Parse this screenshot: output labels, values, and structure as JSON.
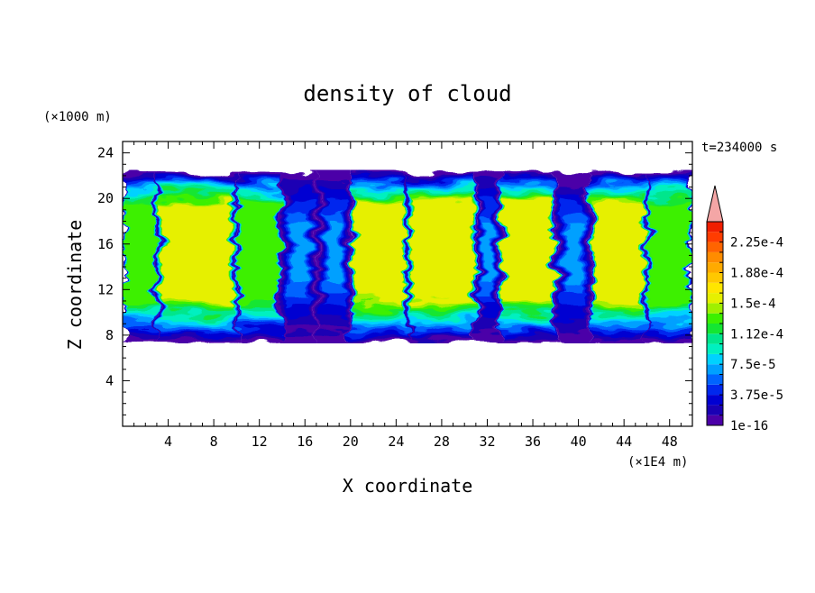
{
  "chart_data": {
    "type": "heatmap",
    "title": "density of cloud",
    "xlabel": "X coordinate",
    "ylabel": "Z coordinate",
    "x_unit": "(×1E4 m)",
    "y_unit": "(×1000 m)",
    "time_label": "t=234000 s",
    "xlim": [
      0,
      50
    ],
    "ylim": [
      0,
      25
    ],
    "x_ticks": [
      "4",
      "8",
      "12",
      "16",
      "20",
      "24",
      "28",
      "32",
      "36",
      "40",
      "44",
      "48"
    ],
    "y_ticks": [
      "4",
      "8",
      "12",
      "16",
      "20",
      "24"
    ],
    "colorbar": {
      "labels": [
        "1e-16",
        "3.75e-5",
        "7.5e-5",
        "1.12e-4",
        "1.5e-4",
        "1.88e-4",
        "2.25e-4"
      ],
      "colors": [
        "#4b00a8",
        "#1a00b4",
        "#0000d2",
        "#0028ee",
        "#0064ff",
        "#00a0ff",
        "#00d2ff",
        "#00f0c0",
        "#00e68c",
        "#14e632",
        "#3cf000",
        "#a0f000",
        "#e6f000",
        "#ffe600",
        "#ffc800",
        "#ffaa00",
        "#ff8c00",
        "#ff6400",
        "#ff3c00",
        "#f01e00"
      ],
      "extend_color": "#f4a6a6"
    },
    "cloud_layer": {
      "base_z": 7,
      "top_z": 22.5,
      "peak_value": "1.5e-4"
    },
    "columns": [
      {
        "x_from": 0,
        "x_to": 3,
        "intensity": "medium"
      },
      {
        "x_from": 3,
        "x_to": 10,
        "intensity": "high"
      },
      {
        "x_from": 10,
        "x_to": 14,
        "intensity": "medium"
      },
      {
        "x_from": 14,
        "x_to": 17,
        "intensity": "low"
      },
      {
        "x_from": 17,
        "x_to": 20,
        "intensity": "low"
      },
      {
        "x_from": 20,
        "x_to": 25,
        "intensity": "high"
      },
      {
        "x_from": 25,
        "x_to": 31,
        "intensity": "high"
      },
      {
        "x_from": 31,
        "x_to": 33,
        "intensity": "low"
      },
      {
        "x_from": 33,
        "x_to": 38,
        "intensity": "high"
      },
      {
        "x_from": 38,
        "x_to": 41,
        "intensity": "low"
      },
      {
        "x_from": 41,
        "x_to": 46,
        "intensity": "high"
      },
      {
        "x_from": 46,
        "x_to": 50,
        "intensity": "medium"
      }
    ]
  }
}
